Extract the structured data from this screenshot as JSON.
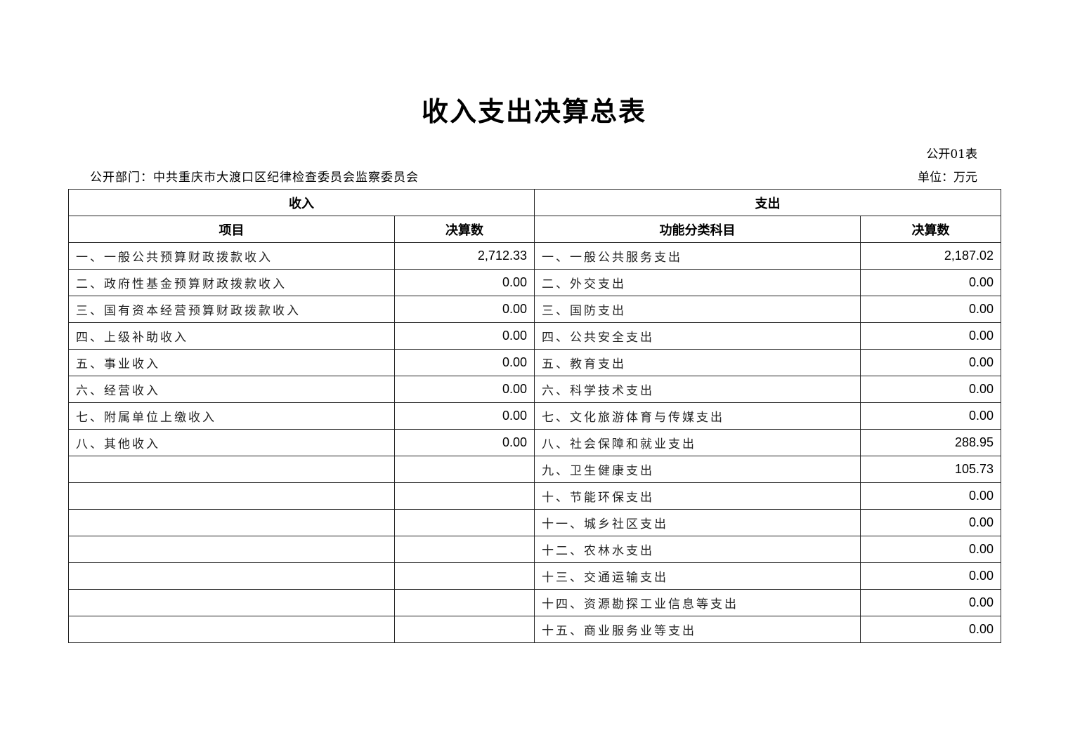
{
  "title": "收入支出决算总表",
  "form_no": "公开01表",
  "department": "公开部门：中共重庆市大渡口区纪律检查委员会监察委员会",
  "unit": "单位：万元",
  "table": {
    "group_headers": {
      "income": "收入",
      "expense": "支出"
    },
    "columns": {
      "income_item": "项目",
      "income_amount": "决算数",
      "expense_item": "功能分类科目",
      "expense_amount": "决算数"
    },
    "rows": [
      {
        "income_item": "一、一般公共预算财政拨款收入",
        "income_amount": "2,712.33",
        "expense_item": "一、一般公共服务支出",
        "expense_amount": "2,187.02"
      },
      {
        "income_item": "二、政府性基金预算财政拨款收入",
        "income_amount": "0.00",
        "expense_item": "二、外交支出",
        "expense_amount": "0.00"
      },
      {
        "income_item": "三、国有资本经营预算财政拨款收入",
        "income_amount": "0.00",
        "expense_item": "三、国防支出",
        "expense_amount": "0.00"
      },
      {
        "income_item": "四、上级补助收入",
        "income_amount": "0.00",
        "expense_item": "四、公共安全支出",
        "expense_amount": "0.00"
      },
      {
        "income_item": "五、事业收入",
        "income_amount": "0.00",
        "expense_item": "五、教育支出",
        "expense_amount": "0.00"
      },
      {
        "income_item": "六、经营收入",
        "income_amount": "0.00",
        "expense_item": "六、科学技术支出",
        "expense_amount": "0.00"
      },
      {
        "income_item": "七、附属单位上缴收入",
        "income_amount": "0.00",
        "expense_item": "七、文化旅游体育与传媒支出",
        "expense_amount": "0.00"
      },
      {
        "income_item": "八、其他收入",
        "income_amount": "0.00",
        "expense_item": "八、社会保障和就业支出",
        "expense_amount": "288.95"
      },
      {
        "income_item": "",
        "income_amount": "",
        "expense_item": "九、卫生健康支出",
        "expense_amount": "105.73"
      },
      {
        "income_item": "",
        "income_amount": "",
        "expense_item": "十、节能环保支出",
        "expense_amount": "0.00"
      },
      {
        "income_item": "",
        "income_amount": "",
        "expense_item": "十一、城乡社区支出",
        "expense_amount": "0.00"
      },
      {
        "income_item": "",
        "income_amount": "",
        "expense_item": "十二、农林水支出",
        "expense_amount": "0.00"
      },
      {
        "income_item": "",
        "income_amount": "",
        "expense_item": "十三、交通运输支出",
        "expense_amount": "0.00"
      },
      {
        "income_item": "",
        "income_amount": "",
        "expense_item": "十四、资源勘探工业信息等支出",
        "expense_amount": "0.00"
      },
      {
        "income_item": "",
        "income_amount": "",
        "expense_item": "十五、商业服务业等支出",
        "expense_amount": "0.00"
      }
    ]
  }
}
